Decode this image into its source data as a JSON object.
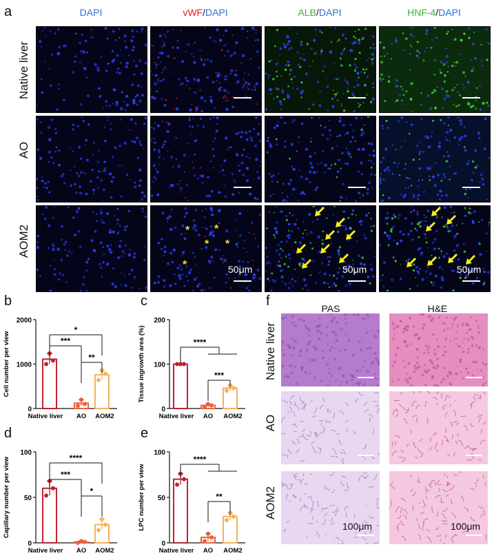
{
  "panel_labels": {
    "a": "a",
    "b": "b",
    "c": "c",
    "d": "d",
    "e": "e",
    "f": "f"
  },
  "panel_a": {
    "columns": [
      {
        "parts": [
          {
            "text": "DAPI",
            "color": "#2f6fd6"
          }
        ]
      },
      {
        "parts": [
          {
            "text": "vWF",
            "color": "#e02020"
          },
          {
            "text": "/",
            "color": "#111111"
          },
          {
            "text": "DAPI",
            "color": "#2f6fd6"
          }
        ]
      },
      {
        "parts": [
          {
            "text": "ALB",
            "color": "#3db03d"
          },
          {
            "text": "/",
            "color": "#111111"
          },
          {
            "text": "DAPI",
            "color": "#2f6fd6"
          }
        ]
      },
      {
        "parts": [
          {
            "text": "HNF-4",
            "color": "#3db03d"
          },
          {
            "text": "/",
            "color": "#111111"
          },
          {
            "text": "DAPI",
            "color": "#2f6fd6"
          }
        ]
      }
    ],
    "rows": [
      "Native liver",
      "AO",
      "AOM2"
    ],
    "scale_label": "50μm",
    "star_symbol": "*",
    "arrow_color": "#f4ef1a"
  },
  "panel_f": {
    "columns": [
      "PAS",
      "H&E"
    ],
    "rows": [
      "Native liver",
      "AO",
      "AOM2"
    ],
    "scale_label": "100μm"
  },
  "chart_data": [
    {
      "id": "b",
      "type": "bar",
      "categories": [
        "Native liver",
        "AO",
        "AOM2"
      ],
      "values": [
        1110,
        120,
        760
      ],
      "points": [
        [
          1000,
          1240,
          1080
        ],
        [
          60,
          200,
          100
        ],
        [
          640,
          860,
          780
        ]
      ],
      "ylabel": "Cell number per view",
      "ylim": [
        0,
        2000
      ],
      "yticks": [
        0,
        1000,
        2000
      ],
      "colors": [
        "#c0222e",
        "#e8613c",
        "#f7b15a"
      ],
      "significance": [
        {
          "groups": [
            0,
            2
          ],
          "label": "*"
        },
        {
          "groups": [
            0,
            1
          ],
          "label": "***"
        },
        {
          "groups": [
            1,
            2
          ],
          "label": "**"
        }
      ]
    },
    {
      "id": "c",
      "type": "bar",
      "categories": [
        "Native liver",
        "AO",
        "AOM2"
      ],
      "values": [
        100,
        7,
        46
      ],
      "points": [
        [
          100,
          100,
          100
        ],
        [
          4,
          10,
          7
        ],
        [
          40,
          52,
          46
        ]
      ],
      "ylabel": "Tissue ingrowth area (%)",
      "ylim": [
        0,
        200
      ],
      "yticks": [
        0,
        100,
        200
      ],
      "colors": [
        "#c0222e",
        "#e8613c",
        "#f7b15a"
      ],
      "significance": [
        {
          "groups": [
            0,
            [
              1,
              2
            ]
          ],
          "label": "****"
        },
        {
          "groups": [
            1,
            2
          ],
          "label": "***"
        }
      ]
    },
    {
      "id": "d",
      "type": "bar",
      "categories": [
        "Native liver",
        "AO",
        "AOM2"
      ],
      "values": [
        60,
        1,
        20
      ],
      "points": [
        [
          52,
          68,
          60
        ],
        [
          0,
          2,
          1
        ],
        [
          14,
          26,
          20
        ]
      ],
      "ylabel": "Capillary number per view",
      "ylim": [
        0,
        100
      ],
      "yticks": [
        0,
        50,
        100
      ],
      "colors": [
        "#c0222e",
        "#e8613c",
        "#f7b15a"
      ],
      "significance": [
        {
          "groups": [
            0,
            2
          ],
          "label": "****"
        },
        {
          "groups": [
            0,
            1
          ],
          "label": "***"
        },
        {
          "groups": [
            1,
            2
          ],
          "label": "*"
        }
      ]
    },
    {
      "id": "e",
      "type": "bar",
      "categories": [
        "Native liver",
        "AO",
        "AOM2"
      ],
      "values": [
        70,
        6,
        29
      ],
      "points": [
        [
          64,
          76,
          70
        ],
        [
          2,
          10,
          6
        ],
        [
          25,
          33,
          29
        ]
      ],
      "ylabel": "LPC number per view",
      "ylim": [
        0,
        100
      ],
      "yticks": [
        0,
        50,
        100
      ],
      "colors": [
        "#c0222e",
        "#e8613c",
        "#f7b15a"
      ],
      "significance": [
        {
          "groups": [
            0,
            [
              1,
              2
            ]
          ],
          "label": "****"
        },
        {
          "groups": [
            1,
            2
          ],
          "label": "**"
        }
      ]
    }
  ]
}
